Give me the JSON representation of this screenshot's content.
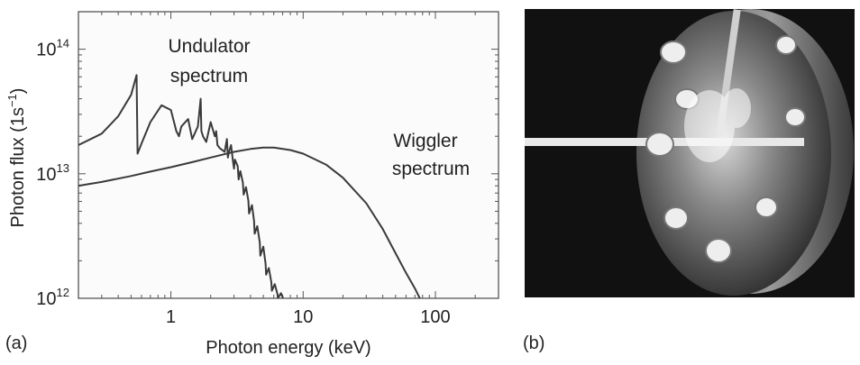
{
  "chart_data": {
    "type": "line",
    "title": "",
    "xlabel": "Photon energy (keV)",
    "ylabel_main": "Photon flux (1s",
    "ylabel_sup": "−1",
    "ylabel_end": ")",
    "x_scale": "log",
    "y_scale": "log",
    "xlim": [
      0.2,
      300
    ],
    "ylim": [
      1000000000000.0,
      200000000000000.0
    ],
    "x_ticks": [
      {
        "value": 1,
        "label": "1"
      },
      {
        "value": 10,
        "label": "10"
      },
      {
        "value": 100,
        "label": "100"
      }
    ],
    "y_ticks": [
      {
        "value": 1000000000000.0,
        "base": "10",
        "exp": "12"
      },
      {
        "value": 10000000000000.0,
        "base": "10",
        "exp": "13"
      },
      {
        "value": 100000000000000.0,
        "base": "10",
        "exp": "14"
      }
    ],
    "annotations": [
      {
        "id": "undulator",
        "lines": [
          "Undulator",
          "spectrum"
        ]
      },
      {
        "id": "wiggler",
        "lines": [
          "Wiggler",
          "spectrum"
        ]
      }
    ],
    "series": [
      {
        "name": "Undulator spectrum",
        "x": [
          0.2,
          0.3,
          0.4,
          0.5,
          0.55,
          0.56,
          0.6,
          0.7,
          0.85,
          1.0,
          1.1,
          1.15,
          1.2,
          1.35,
          1.45,
          1.6,
          1.68,
          1.7,
          1.75,
          1.85,
          2.0,
          2.15,
          2.2,
          2.25,
          2.35,
          2.55,
          2.65,
          2.7,
          2.75,
          2.85,
          2.95,
          3.0,
          3.05,
          3.2,
          3.25,
          3.35,
          3.5,
          3.55,
          3.7,
          3.85,
          3.9,
          4.1,
          4.25,
          4.3,
          4.5,
          4.7,
          4.75,
          5.0,
          5.2,
          5.25,
          5.5,
          5.75,
          5.8,
          6.1,
          6.4,
          6.45,
          6.8,
          7.1,
          7.2
        ],
        "y": [
          17000000000000.0,
          21000000000000.0,
          29000000000000.0,
          43000000000000.0,
          62000000000000.0,
          14500000000000.0,
          17500000000000.0,
          26000000000000.0,
          35500000000000.0,
          32500000000000.0,
          22000000000000.0,
          20000000000000.0,
          24000000000000.0,
          27500000000000.0,
          19000000000000.0,
          24000000000000.0,
          40000000000000.0,
          22000000000000.0,
          20000000000000.0,
          18000000000000.0,
          26000000000000.0,
          20000000000000.0,
          22000000000000.0,
          17000000000000.0,
          16000000000000.0,
          15000000000000.0,
          19000000000000.0,
          13500000000000.0,
          15000000000000.0,
          17000000000000.0,
          12500000000000.0,
          11000000000000.0,
          13000000000000.0,
          11500000000000.0,
          9000000000000.0,
          10500000000000.0,
          8500000000000.0,
          6800000000000.0,
          7800000000000.0,
          6100000000000.0,
          4800000000000.0,
          5600000000000.0,
          4200000000000.0,
          3300000000000.0,
          3800000000000.0,
          2800000000000.0,
          2200000000000.0,
          2600000000000.0,
          1900000000000.0,
          1550000000000.0,
          1750000000000.0,
          1350000000000.0,
          1150000000000.0,
          1300000000000.0,
          1080000000000.0,
          1000000000000.0,
          1100000000000.0,
          980000000000.0,
          900000000000.0
        ]
      },
      {
        "name": "Wiggler spectrum",
        "x": [
          0.2,
          0.3,
          0.5,
          0.7,
          1,
          1.5,
          2,
          3,
          4,
          5,
          6,
          8,
          10,
          15,
          20,
          30,
          40,
          50,
          60,
          70,
          80
        ],
        "y": [
          8000000000000.0,
          8600000000000.0,
          9600000000000.0,
          10400000000000.0,
          11300000000000.0,
          12500000000000.0,
          13500000000000.0,
          15000000000000.0,
          15800000000000.0,
          16200000000000.0,
          16200000000000.0,
          15500000000000.0,
          14500000000000.0,
          11800000000000.0,
          9300000000000.0,
          5800000000000.0,
          3600000000000.0,
          2300000000000.0,
          1600000000000.0,
          1200000000000.0,
          900000000000.0
        ]
      }
    ]
  },
  "panel_labels": {
    "a": "(a)",
    "b": "(b)"
  },
  "colors": {
    "line": "#3a3a3a",
    "frame": "#555555",
    "photo_bg": "#111111"
  }
}
